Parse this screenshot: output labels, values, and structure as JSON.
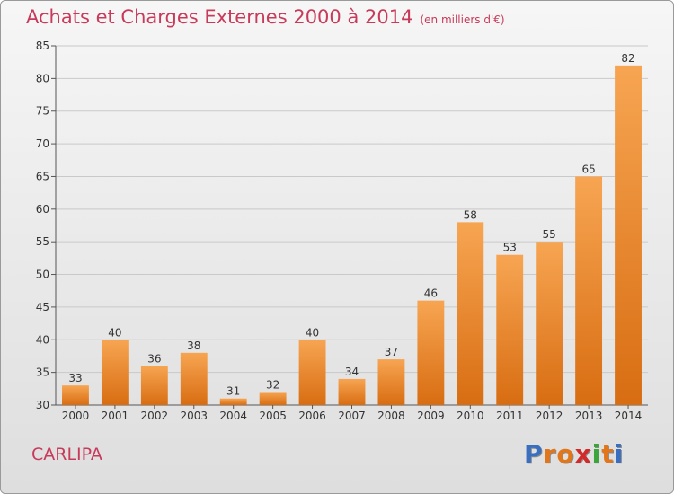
{
  "title": "Achats et Charges Externes 2000 à 2014",
  "unit_note": "(en milliers d'€)",
  "commune": "CARLIPA",
  "brand": {
    "text": "Proxiti",
    "letter_colors": [
      "#3a6fc0",
      "#e2761b",
      "#e2761b",
      "#d22a2a",
      "#3aa63a",
      "#e2761b",
      "#3a6fc0"
    ]
  },
  "colors": {
    "title": "#c83a5a",
    "bar_light": "#f7a552",
    "bar_dark": "#d86d12",
    "grid": "#c9c9c9",
    "axis": "#555555"
  },
  "chart_data": {
    "type": "bar",
    "categories": [
      "2000",
      "2001",
      "2002",
      "2003",
      "2004",
      "2005",
      "2006",
      "2007",
      "2008",
      "2009",
      "2010",
      "2011",
      "2012",
      "2013",
      "2014"
    ],
    "values": [
      33,
      40,
      36,
      38,
      31,
      32,
      40,
      34,
      37,
      46,
      58,
      53,
      55,
      65,
      82
    ],
    "ylim": [
      30,
      85
    ],
    "yticks": [
      30,
      35,
      40,
      45,
      50,
      55,
      60,
      65,
      70,
      75,
      80,
      85
    ],
    "grid": true,
    "xlabel": "",
    "ylabel": ""
  }
}
